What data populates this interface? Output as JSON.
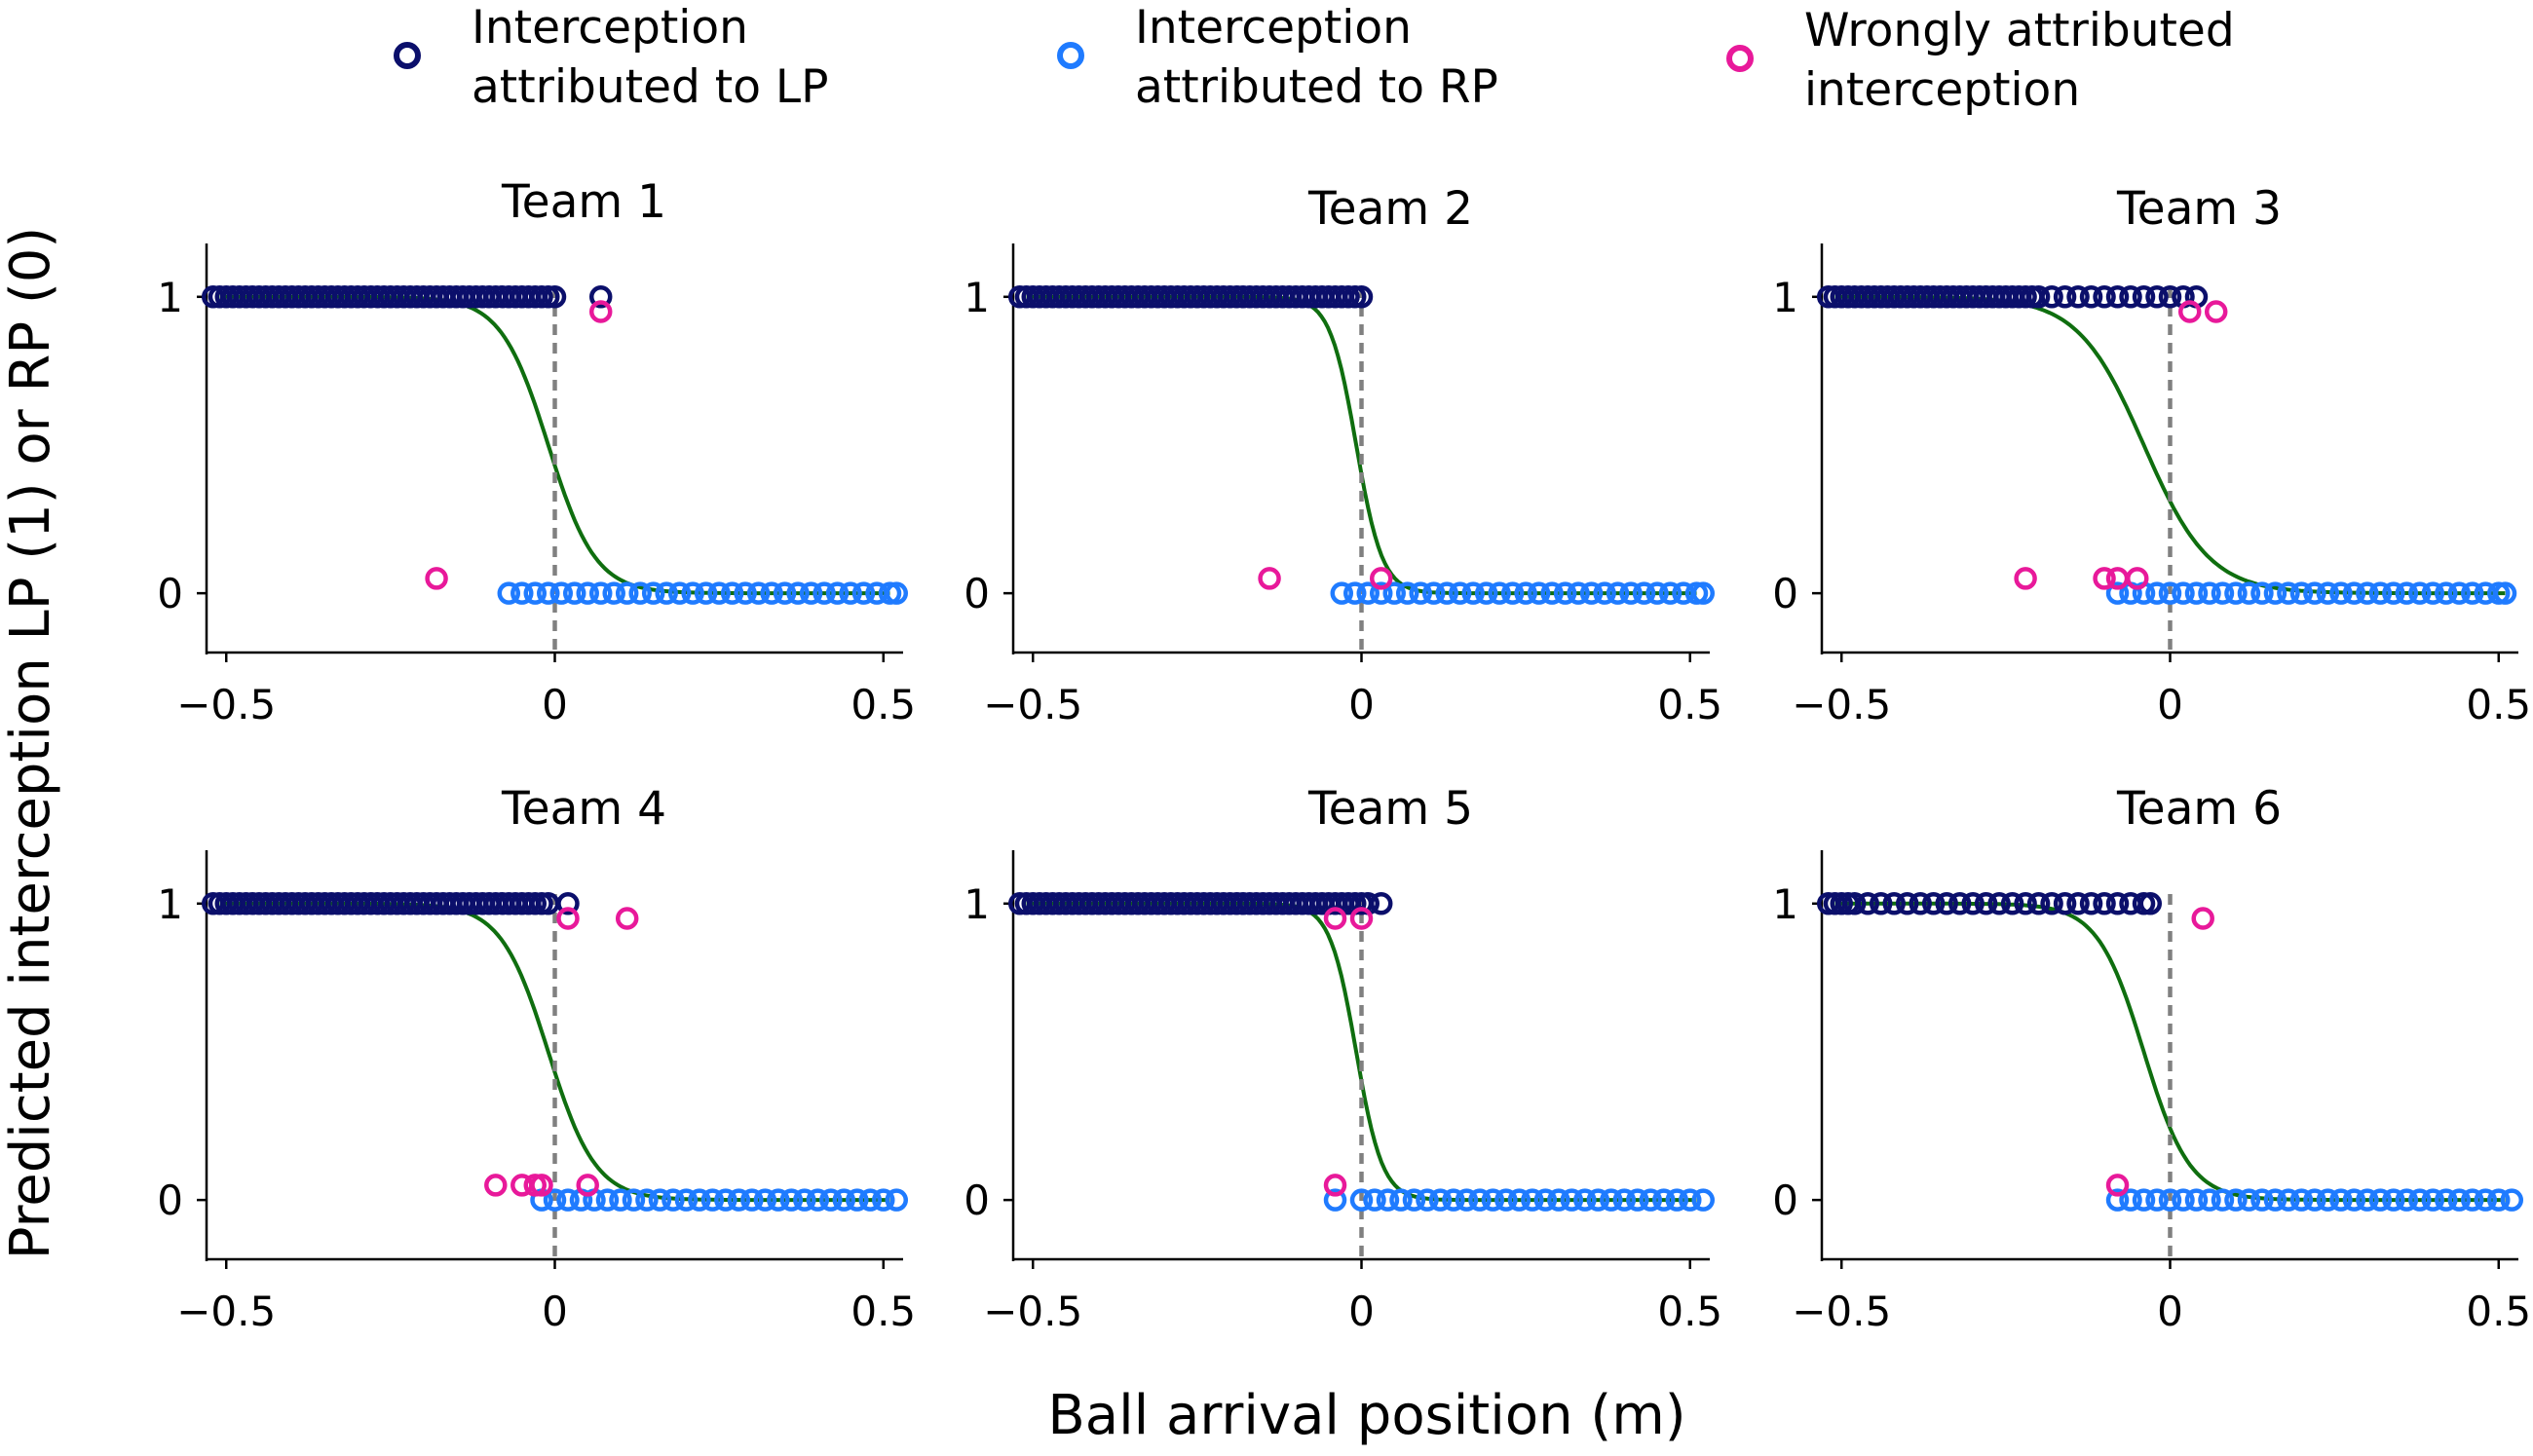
{
  "figure": {
    "ylabel": "Predicted interception LP (1) or RP (0)",
    "xlabel": "Ball arrival position (m)"
  },
  "legend": [
    {
      "lines": [
        "Interception",
        "attributed to LP"
      ],
      "color": "#0b0f6b"
    },
    {
      "lines": [
        "Interception",
        "attributed to RP"
      ],
      "color": "#1f7bff"
    },
    {
      "lines": [
        "Wrongly attributed",
        "interception"
      ],
      "color": "#e8199a"
    }
  ],
  "colors": {
    "lp": "#0b0f6b",
    "rp": "#1f7bff",
    "wrong": "#e8199a",
    "curve": "#0f6e0f",
    "threshold": "#808080",
    "axis": "#000000"
  },
  "chart_data": [
    {
      "type": "scatter",
      "title": "Team 1",
      "xlim": [
        -0.53,
        0.53
      ],
      "ylim": [
        -0.2,
        1.18
      ],
      "xticks": [
        -0.5,
        0,
        0.5
      ],
      "xtick_labels": [
        "−0.5",
        "0",
        "0.5"
      ],
      "yticks": [
        0,
        1
      ],
      "ytick_labels": [
        "0",
        "1"
      ],
      "threshold": 0,
      "curve": {
        "center": -0.01,
        "scale": 0.036
      },
      "lp": [
        -0.52,
        -0.51,
        -0.5,
        -0.49,
        -0.48,
        -0.47,
        -0.46,
        -0.45,
        -0.44,
        -0.43,
        -0.42,
        -0.41,
        -0.4,
        -0.39,
        -0.38,
        -0.37,
        -0.36,
        -0.35,
        -0.34,
        -0.33,
        -0.32,
        -0.31,
        -0.3,
        -0.29,
        -0.28,
        -0.27,
        -0.26,
        -0.25,
        -0.24,
        -0.23,
        -0.22,
        -0.21,
        -0.2,
        -0.19,
        -0.18,
        -0.17,
        -0.16,
        -0.15,
        -0.14,
        -0.13,
        -0.12,
        -0.11,
        -0.1,
        -0.09,
        -0.08,
        -0.07,
        -0.06,
        -0.05,
        -0.04,
        -0.03,
        -0.02,
        -0.01,
        0.0,
        0.07
      ],
      "rp": [
        -0.07,
        -0.05,
        -0.03,
        -0.01,
        0.01,
        0.03,
        0.05,
        0.07,
        0.09,
        0.11,
        0.13,
        0.15,
        0.17,
        0.19,
        0.21,
        0.23,
        0.25,
        0.27,
        0.29,
        0.31,
        0.33,
        0.35,
        0.37,
        0.39,
        0.41,
        0.43,
        0.45,
        0.47,
        0.49,
        0.51,
        0.52
      ],
      "wrong": [
        {
          "x": -0.18,
          "y": 0.05
        },
        {
          "x": 0.07,
          "y": 0.95
        }
      ]
    },
    {
      "type": "scatter",
      "title": "Team 2",
      "xlim": [
        -0.53,
        0.53
      ],
      "ylim": [
        -0.2,
        1.18
      ],
      "xticks": [
        -0.5,
        0,
        0.5
      ],
      "xtick_labels": [
        "−0.5",
        "0",
        "0.5"
      ],
      "yticks": [
        0,
        1
      ],
      "ytick_labels": [
        "0",
        "1"
      ],
      "threshold": 0,
      "curve": {
        "center": -0.008,
        "scale": 0.02
      },
      "lp": [
        -0.52,
        -0.51,
        -0.5,
        -0.49,
        -0.48,
        -0.47,
        -0.46,
        -0.45,
        -0.44,
        -0.43,
        -0.42,
        -0.41,
        -0.4,
        -0.39,
        -0.38,
        -0.37,
        -0.36,
        -0.35,
        -0.34,
        -0.33,
        -0.32,
        -0.31,
        -0.3,
        -0.29,
        -0.28,
        -0.27,
        -0.26,
        -0.25,
        -0.24,
        -0.23,
        -0.22,
        -0.21,
        -0.2,
        -0.19,
        -0.18,
        -0.17,
        -0.16,
        -0.15,
        -0.14,
        -0.13,
        -0.12,
        -0.11,
        -0.1,
        -0.09,
        -0.08,
        -0.07,
        -0.06,
        -0.05,
        -0.04,
        -0.03,
        -0.02,
        -0.01,
        0.0
      ],
      "rp": [
        -0.03,
        -0.01,
        0.01,
        0.03,
        0.05,
        0.07,
        0.09,
        0.11,
        0.13,
        0.15,
        0.17,
        0.19,
        0.21,
        0.23,
        0.25,
        0.27,
        0.29,
        0.31,
        0.33,
        0.35,
        0.37,
        0.39,
        0.41,
        0.43,
        0.45,
        0.47,
        0.49,
        0.51,
        0.52
      ],
      "wrong": [
        {
          "x": -0.14,
          "y": 0.05
        },
        {
          "x": 0.03,
          "y": 0.05
        }
      ]
    },
    {
      "type": "scatter",
      "title": "Team 3",
      "xlim": [
        -0.53,
        0.53
      ],
      "ylim": [
        -0.2,
        1.18
      ],
      "xticks": [
        -0.5,
        0,
        0.5
      ],
      "xtick_labels": [
        "−0.5",
        "0",
        "0.5"
      ],
      "yticks": [
        0,
        1
      ],
      "ytick_labels": [
        "0",
        "1"
      ],
      "threshold": 0,
      "curve": {
        "center": -0.04,
        "scale": 0.05
      },
      "lp": [
        -0.52,
        -0.51,
        -0.5,
        -0.49,
        -0.48,
        -0.47,
        -0.46,
        -0.45,
        -0.44,
        -0.43,
        -0.42,
        -0.41,
        -0.4,
        -0.39,
        -0.38,
        -0.37,
        -0.36,
        -0.35,
        -0.34,
        -0.33,
        -0.32,
        -0.31,
        -0.3,
        -0.29,
        -0.28,
        -0.27,
        -0.26,
        -0.25,
        -0.24,
        -0.23,
        -0.22,
        -0.21,
        -0.2,
        -0.18,
        -0.16,
        -0.14,
        -0.12,
        -0.1,
        -0.08,
        -0.06,
        -0.04,
        -0.02,
        0.0,
        0.02,
        0.04
      ],
      "rp": [
        -0.08,
        -0.06,
        -0.04,
        -0.02,
        0.0,
        0.02,
        0.04,
        0.06,
        0.08,
        0.1,
        0.12,
        0.14,
        0.16,
        0.18,
        0.2,
        0.22,
        0.24,
        0.26,
        0.28,
        0.3,
        0.32,
        0.34,
        0.36,
        0.38,
        0.4,
        0.42,
        0.44,
        0.46,
        0.48,
        0.5,
        0.51
      ],
      "wrong": [
        {
          "x": -0.22,
          "y": 0.05
        },
        {
          "x": -0.1,
          "y": 0.05
        },
        {
          "x": -0.08,
          "y": 0.05
        },
        {
          "x": -0.05,
          "y": 0.05
        },
        {
          "x": 0.03,
          "y": 0.95
        },
        {
          "x": 0.07,
          "y": 0.95
        }
      ]
    },
    {
      "type": "scatter",
      "title": "Team 4",
      "xlim": [
        -0.53,
        0.53
      ],
      "ylim": [
        -0.2,
        1.18
      ],
      "xticks": [
        -0.5,
        0,
        0.5
      ],
      "xtick_labels": [
        "−0.5",
        "0",
        "0.5"
      ],
      "yticks": [
        0,
        1
      ],
      "ytick_labels": [
        "0",
        "1"
      ],
      "threshold": 0,
      "curve": {
        "center": -0.01,
        "scale": 0.036
      },
      "lp": [
        -0.52,
        -0.51,
        -0.5,
        -0.49,
        -0.48,
        -0.47,
        -0.46,
        -0.45,
        -0.44,
        -0.43,
        -0.42,
        -0.41,
        -0.4,
        -0.39,
        -0.38,
        -0.37,
        -0.36,
        -0.35,
        -0.34,
        -0.33,
        -0.32,
        -0.31,
        -0.3,
        -0.29,
        -0.28,
        -0.27,
        -0.26,
        -0.25,
        -0.24,
        -0.23,
        -0.22,
        -0.21,
        -0.2,
        -0.19,
        -0.18,
        -0.17,
        -0.16,
        -0.15,
        -0.14,
        -0.13,
        -0.12,
        -0.11,
        -0.1,
        -0.09,
        -0.08,
        -0.07,
        -0.06,
        -0.05,
        -0.04,
        -0.03,
        -0.02,
        -0.01,
        0.02
      ],
      "rp": [
        -0.02,
        0.0,
        0.02,
        0.04,
        0.06,
        0.08,
        0.1,
        0.12,
        0.14,
        0.16,
        0.18,
        0.2,
        0.22,
        0.24,
        0.26,
        0.28,
        0.3,
        0.32,
        0.34,
        0.36,
        0.38,
        0.4,
        0.42,
        0.44,
        0.46,
        0.48,
        0.5,
        0.52
      ],
      "wrong": [
        {
          "x": -0.09,
          "y": 0.05
        },
        {
          "x": -0.05,
          "y": 0.05
        },
        {
          "x": -0.03,
          "y": 0.05
        },
        {
          "x": -0.02,
          "y": 0.05
        },
        {
          "x": 0.05,
          "y": 0.05
        },
        {
          "x": 0.02,
          "y": 0.95
        },
        {
          "x": 0.11,
          "y": 0.95
        }
      ]
    },
    {
      "type": "scatter",
      "title": "Team 5",
      "xlim": [
        -0.53,
        0.53
      ],
      "ylim": [
        -0.2,
        1.18
      ],
      "xticks": [
        -0.5,
        0,
        0.5
      ],
      "xtick_labels": [
        "−0.5",
        "0",
        "0.5"
      ],
      "yticks": [
        0,
        1
      ],
      "ytick_labels": [
        "0",
        "1"
      ],
      "threshold": 0,
      "curve": {
        "center": -0.008,
        "scale": 0.02
      },
      "lp": [
        -0.52,
        -0.51,
        -0.5,
        -0.49,
        -0.48,
        -0.47,
        -0.46,
        -0.45,
        -0.44,
        -0.43,
        -0.42,
        -0.41,
        -0.4,
        -0.39,
        -0.38,
        -0.37,
        -0.36,
        -0.35,
        -0.34,
        -0.33,
        -0.32,
        -0.31,
        -0.3,
        -0.29,
        -0.28,
        -0.27,
        -0.26,
        -0.25,
        -0.24,
        -0.23,
        -0.22,
        -0.21,
        -0.2,
        -0.19,
        -0.18,
        -0.17,
        -0.16,
        -0.15,
        -0.14,
        -0.13,
        -0.12,
        -0.11,
        -0.1,
        -0.09,
        -0.08,
        -0.07,
        -0.06,
        -0.05,
        -0.04,
        -0.03,
        -0.02,
        -0.01,
        0.0,
        0.01,
        0.03
      ],
      "rp": [
        -0.04,
        0.0,
        0.02,
        0.04,
        0.06,
        0.08,
        0.1,
        0.12,
        0.14,
        0.16,
        0.18,
        0.2,
        0.22,
        0.24,
        0.26,
        0.28,
        0.3,
        0.32,
        0.34,
        0.36,
        0.38,
        0.4,
        0.42,
        0.44,
        0.46,
        0.48,
        0.5,
        0.52
      ],
      "wrong": [
        {
          "x": -0.04,
          "y": 0.05
        },
        {
          "x": -0.04,
          "y": 0.95
        },
        {
          "x": 0.0,
          "y": 0.95
        }
      ]
    },
    {
      "type": "scatter",
      "title": "Team 6",
      "xlim": [
        -0.53,
        0.53
      ],
      "ylim": [
        -0.2,
        1.18
      ],
      "xticks": [
        -0.5,
        0,
        0.5
      ],
      "xtick_labels": [
        "−0.5",
        "0",
        "0.5"
      ],
      "yticks": [
        0,
        1
      ],
      "ytick_labels": [
        "0",
        "1"
      ],
      "threshold": 0,
      "curve": {
        "center": -0.04,
        "scale": 0.035
      },
      "lp": [
        -0.52,
        -0.51,
        -0.5,
        -0.49,
        -0.48,
        -0.46,
        -0.44,
        -0.42,
        -0.4,
        -0.38,
        -0.36,
        -0.34,
        -0.32,
        -0.3,
        -0.28,
        -0.26,
        -0.24,
        -0.22,
        -0.2,
        -0.18,
        -0.16,
        -0.14,
        -0.12,
        -0.1,
        -0.08,
        -0.06,
        -0.04,
        -0.03
      ],
      "rp": [
        -0.08,
        -0.06,
        -0.04,
        -0.02,
        0.0,
        0.02,
        0.04,
        0.06,
        0.08,
        0.1,
        0.12,
        0.14,
        0.16,
        0.18,
        0.2,
        0.22,
        0.24,
        0.26,
        0.28,
        0.3,
        0.32,
        0.34,
        0.36,
        0.38,
        0.4,
        0.42,
        0.44,
        0.46,
        0.48,
        0.5,
        0.52
      ],
      "wrong": [
        {
          "x": -0.08,
          "y": 0.05
        },
        {
          "x": 0.05,
          "y": 0.95
        }
      ]
    }
  ]
}
